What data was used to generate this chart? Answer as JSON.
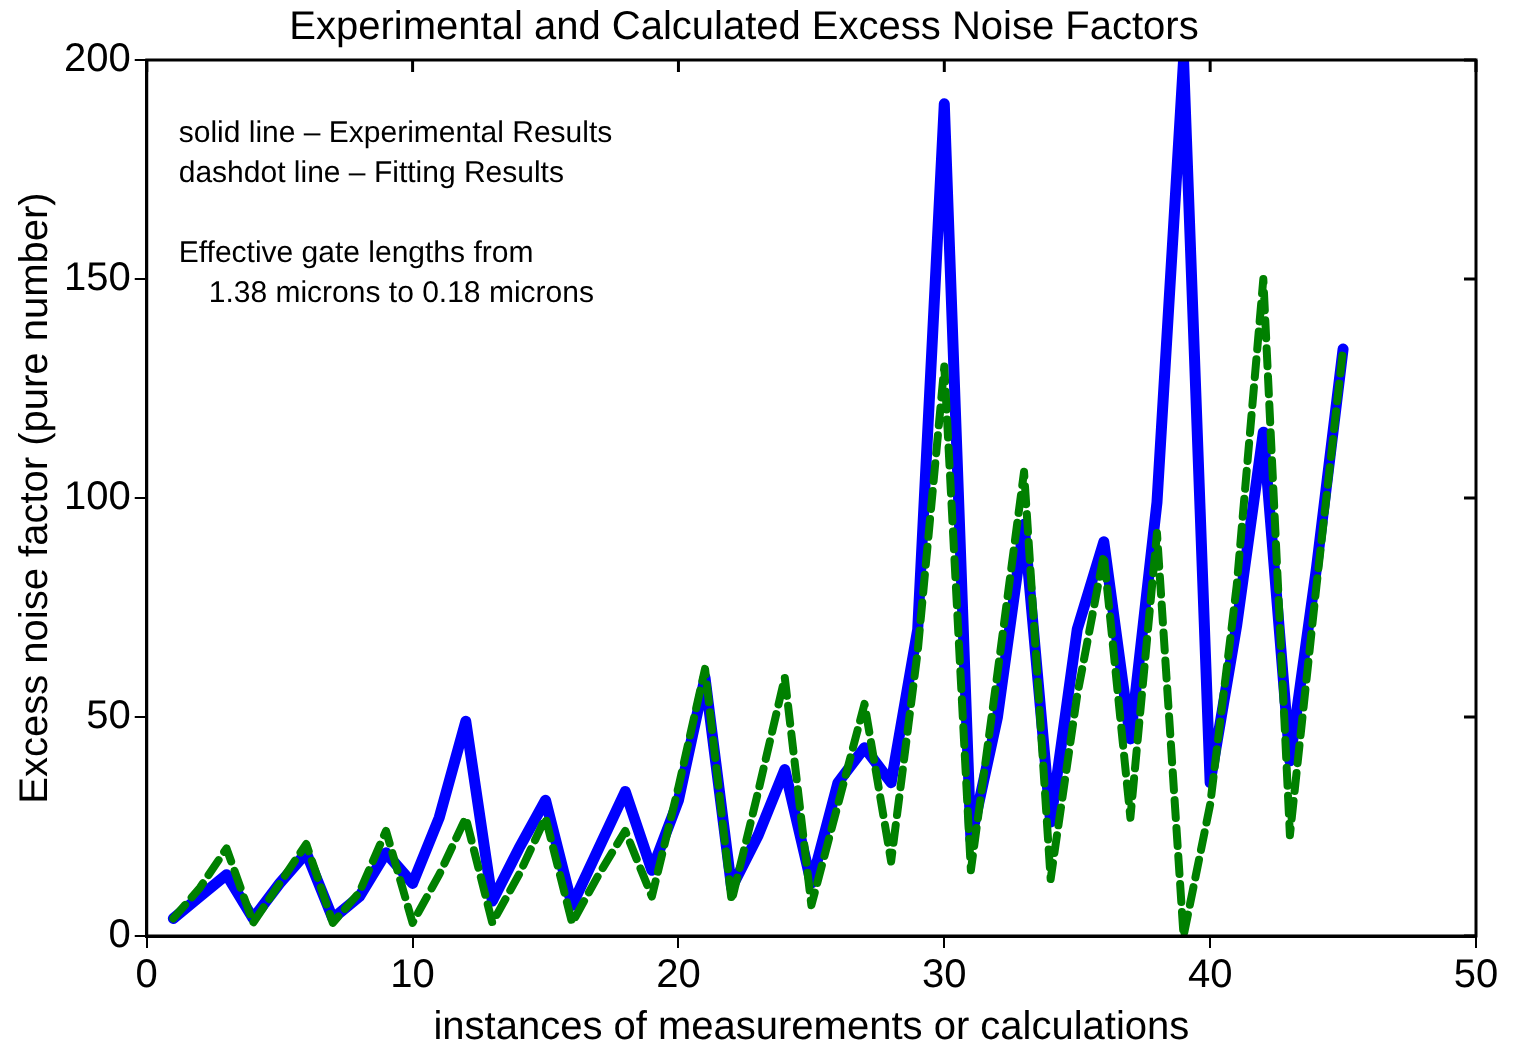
{
  "chart_data": {
    "type": "line",
    "title": "Experimental and Calculated Excess Noise Factors",
    "xlabel": "instances of measurements or calculations",
    "ylabel": "Excess noise factor (pure number)",
    "annotations": [
      "solid line – Experimental Results",
      "dashdot line – Fitting Results",
      "Effective gate lengths from",
      "  1.38 microns to 0.18 microns"
    ],
    "x": [
      1,
      2,
      3,
      4,
      5,
      6,
      7,
      8,
      9,
      10,
      11,
      12,
      13,
      14,
      15,
      16,
      17,
      18,
      19,
      20,
      21,
      22,
      23,
      24,
      25,
      26,
      27,
      28,
      29,
      30,
      31,
      32,
      33,
      34,
      35,
      36,
      37,
      38,
      39,
      40,
      41,
      42,
      43,
      44,
      45
    ],
    "series": [
      {
        "color": "#0000ff",
        "line_style": "solid",
        "values": [
          4,
          9,
          14,
          4,
          12,
          19,
          4,
          9,
          19,
          12,
          27,
          49,
          8,
          20,
          31,
          7,
          20,
          33,
          15,
          31,
          59,
          11,
          23,
          38,
          12,
          35,
          43,
          35,
          70,
          190,
          22,
          50,
          94,
          26,
          70,
          90,
          45,
          99,
          200,
          35,
          71,
          115,
          40,
          84,
          134
        ]
      },
      {
        "color": "#008000",
        "line_style": "dashed",
        "values": [
          4,
          11,
          20,
          3,
          12,
          21,
          3,
          10,
          24,
          3,
          14,
          27,
          3,
          14,
          27,
          3,
          14,
          24,
          9,
          34,
          61,
          8,
          33,
          59,
          7,
          30,
          53,
          17,
          65,
          130,
          15,
          60,
          106,
          13,
          55,
          87,
          27,
          92,
          0,
          30,
          80,
          150,
          23,
          80,
          134
        ]
      }
    ],
    "xlim": [
      0,
      50
    ],
    "xticks": [
      0,
      10,
      20,
      30,
      40,
      50
    ],
    "ylim": [
      0,
      200
    ],
    "yticks": [
      0,
      50,
      100,
      150,
      200
    ],
    "grid": false,
    "legend": false,
    "marker": "none"
  }
}
